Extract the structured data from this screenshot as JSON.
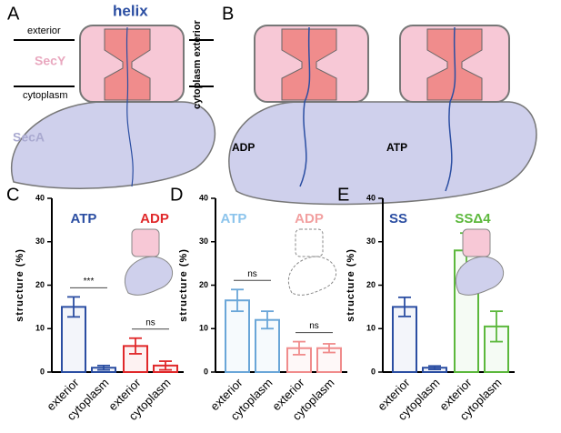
{
  "diagram": {
    "panel_a": "A",
    "panel_b": "B",
    "helix": "helix",
    "exterior": "exterior",
    "cytoplasm": "cytoplasm",
    "secy": "SecY",
    "seca": "SecA",
    "side_label": "cytoplasm exterior",
    "adp": "ADP",
    "atp": "ATP"
  },
  "chart_data": [
    {
      "type": "bar",
      "panel": "C",
      "ylabel": "structure (%)",
      "ylim": [
        0,
        40
      ],
      "yticks": [
        0,
        10,
        20,
        30,
        40
      ],
      "categories": [
        "exterior",
        "cytoplasm",
        "exterior",
        "cytoplasm"
      ],
      "values": [
        15,
        1,
        6,
        1.5
      ],
      "errors": [
        2.3,
        0.5,
        1.8,
        1
      ],
      "colors": [
        "#2b4ea2",
        "#2b4ea2",
        "#e0282a",
        "#e0282a"
      ],
      "legend": [
        {
          "name": "ATP",
          "color": "#2b4ea2"
        },
        {
          "name": "ADP",
          "color": "#e0282a"
        }
      ],
      "annotations": [
        "***",
        "ns"
      ]
    },
    {
      "type": "bar",
      "panel": "D",
      "ylabel": "structure (%)",
      "ylim": [
        0,
        40
      ],
      "yticks": [
        0,
        10,
        20,
        30,
        40
      ],
      "categories": [
        "exterior",
        "cytoplasm",
        "exterior",
        "cytoplasm"
      ],
      "values": [
        16.5,
        12,
        5.5,
        5.5
      ],
      "errors": [
        2.5,
        2,
        1.5,
        1
      ],
      "colors": [
        "#6aa6d8",
        "#6aa6d8",
        "#f08c8c",
        "#f08c8c"
      ],
      "legend": [
        {
          "name": "ATP",
          "color": "#8cc4ec"
        },
        {
          "name": "ADP",
          "color": "#f2a0a0"
        }
      ],
      "annotations": [
        "ns",
        "ns"
      ]
    },
    {
      "type": "bar",
      "panel": "E",
      "ylabel": "structure (%)",
      "ylim": [
        0,
        40
      ],
      "yticks": [
        0,
        10,
        20,
        30,
        40
      ],
      "categories": [
        "exterior",
        "cytoplasm",
        "exterior",
        "cytoplasm"
      ],
      "values": [
        15,
        1,
        28,
        10.5
      ],
      "errors": [
        2.2,
        0.4,
        4,
        3.5
      ],
      "colors": [
        "#2b4ea2",
        "#2b4ea2",
        "#5cb83c",
        "#5cb83c"
      ],
      "legend": [
        {
          "name": "SS",
          "color": "#2b4ea2"
        },
        {
          "name": "SSΔ4",
          "color": "#5cb83c"
        }
      ]
    }
  ]
}
